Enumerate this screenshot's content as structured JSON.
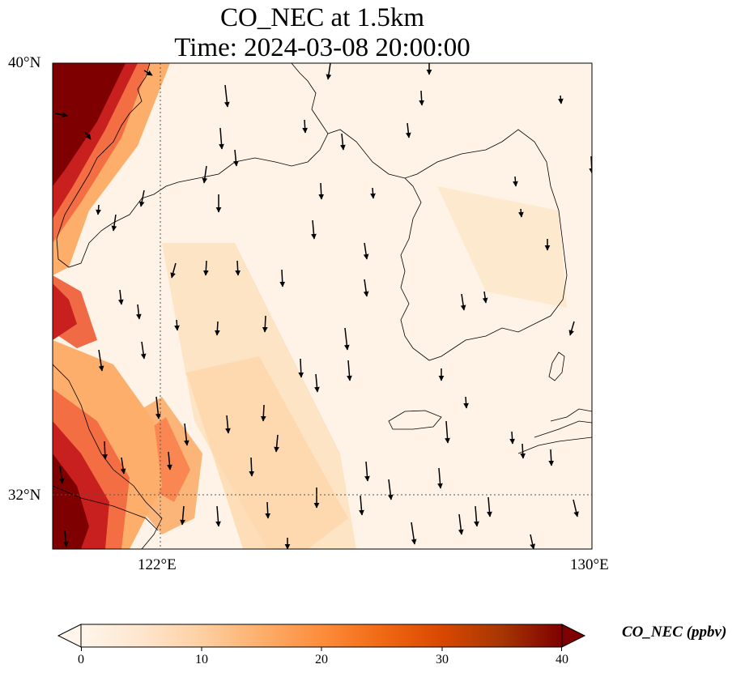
{
  "title": {
    "line1": "CO_NEC at 1.5km",
    "line2": "Time: 2024-03-08 20:00:00"
  },
  "map": {
    "lat_range": [
      31.0,
      40.0
    ],
    "lon_range": [
      120.0,
      130.0
    ],
    "lat_ticks": [
      {
        "value": 40,
        "label": "40°N"
      },
      {
        "value": 32,
        "label": "32°N"
      }
    ],
    "lon_ticks": [
      {
        "value": 122,
        "label": "122°E"
      },
      {
        "value": 130,
        "label": "130°E"
      }
    ],
    "gridlines": [
      {
        "axis": "lon",
        "value": 122
      },
      {
        "axis": "lat",
        "value": 32
      }
    ]
  },
  "colorbar": {
    "label": "CO_NEC (ppbv)",
    "min": 0,
    "max": 40,
    "ticks": [
      "0",
      "10",
      "20",
      "30",
      "40"
    ],
    "colors": [
      "#fff5eb",
      "#fee6ce",
      "#fdd0a2",
      "#fdae6b",
      "#fd8d3c",
      "#f16913",
      "#d94801",
      "#a63603",
      "#7f0000"
    ]
  }
}
